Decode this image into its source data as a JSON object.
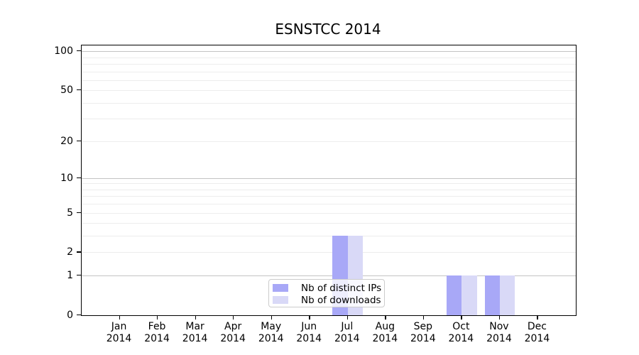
{
  "chart_data": {
    "type": "bar",
    "title": "ESNSTCC 2014",
    "x_months": [
      "Jan",
      "Feb",
      "Mar",
      "Apr",
      "May",
      "Jun",
      "Jul",
      "Aug",
      "Sep",
      "Oct",
      "Nov",
      "Dec"
    ],
    "x_year": "2014",
    "series": [
      {
        "name": "Nb of distinct IPs",
        "color": "#a8a8f7",
        "values": [
          0,
          0,
          0,
          0,
          0,
          0,
          3,
          0,
          0,
          1,
          1,
          0
        ]
      },
      {
        "name": "Nb of downloads",
        "color": "#d9d9f7",
        "values": [
          0,
          0,
          0,
          0,
          0,
          0,
          3,
          0,
          0,
          1,
          1,
          0
        ]
      }
    ],
    "yscale": "log1p",
    "ylim": [
      0,
      110.7
    ],
    "yticks": [
      0,
      1,
      2,
      5,
      10,
      20,
      50,
      100
    ],
    "grid": "horizontal",
    "grid_major_values": [
      1,
      10,
      100
    ],
    "grid_minor_values": [
      2,
      3,
      4,
      5,
      6,
      7,
      8,
      9,
      20,
      30,
      40,
      50,
      60,
      70,
      80,
      90
    ],
    "legend_position": "lower center",
    "colors": {
      "grid_major": "#c3c3c3",
      "grid_minor": "#ededed",
      "axis": "#000000",
      "background": "#ffffff"
    }
  }
}
